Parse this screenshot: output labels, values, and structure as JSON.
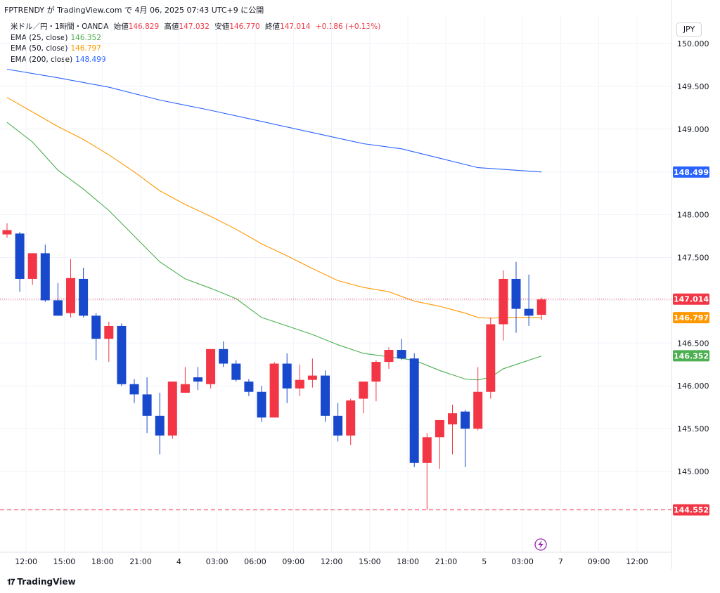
{
  "header": {
    "title": "FPTRENDY が TradingView.com で 4月 06, 2025 07:43 UTC+9 に公開"
  },
  "legend": {
    "symbol": "米ドル／円・1時間・OANDA",
    "open_label": "始値",
    "open": "146.829",
    "high_label": "高値",
    "high": "147.032",
    "low_label": "安値",
    "low": "146.770",
    "close_label": "終値",
    "close": "147.014",
    "change": "+0.186 (+0.13%)",
    "ema25_label": "EMA (25, close)",
    "ema25": "146.352",
    "ema50_label": "EMA (50, close)",
    "ema50": "146.797",
    "ema200_label": "EMA (200, close)",
    "ema200": "148.499"
  },
  "currency": "JPY",
  "footer": {
    "brand": "TradingView"
  },
  "colors": {
    "up": "#f23645",
    "down": "#1848cc",
    "ema25": "#4caf50",
    "ema50": "#ff9800",
    "ema200": "#2962ff",
    "grid": "#f0f3fa"
  },
  "chart_data": {
    "type": "candlestick",
    "title": "米ドル／円・1時間・OANDA",
    "y_ticks": [
      "150.000",
      "149.500",
      "149.000",
      "148.500",
      "148.000",
      "147.500",
      "147.000",
      "146.500",
      "146.000",
      "145.500",
      "145.000"
    ],
    "ylim": [
      144.3,
      150.25
    ],
    "x_ticks": [
      {
        "i": 1.5,
        "label": "12:00"
      },
      {
        "i": 4.5,
        "label": "15:00"
      },
      {
        "i": 7.5,
        "label": "18:00"
      },
      {
        "i": 10.5,
        "label": "21:00"
      },
      {
        "i": 13.5,
        "label": "4"
      },
      {
        "i": 16.5,
        "label": "03:00"
      },
      {
        "i": 19.5,
        "label": "06:00"
      },
      {
        "i": 22.5,
        "label": "09:00"
      },
      {
        "i": 25.5,
        "label": "12:00"
      },
      {
        "i": 28.5,
        "label": "15:00"
      },
      {
        "i": 31.5,
        "label": "18:00"
      },
      {
        "i": 34.5,
        "label": "21:00"
      },
      {
        "i": 37.5,
        "label": "5"
      },
      {
        "i": 40.5,
        "label": "03:00"
      },
      {
        "i": 43.5,
        "label": "7"
      },
      {
        "i": 46.5,
        "label": "09:00"
      },
      {
        "i": 49.5,
        "label": "12:00"
      }
    ],
    "candles": [
      [
        147.77,
        147.9,
        147.73,
        147.82
      ],
      [
        147.78,
        147.8,
        147.1,
        147.25
      ],
      [
        147.25,
        147.55,
        147.18,
        147.55
      ],
      [
        147.55,
        147.65,
        146.98,
        147.0
      ],
      [
        147.0,
        147.2,
        146.82,
        146.82
      ],
      [
        146.85,
        147.48,
        146.8,
        147.26
      ],
      [
        147.25,
        147.38,
        146.8,
        146.82
      ],
      [
        146.82,
        146.85,
        146.3,
        146.55
      ],
      [
        146.55,
        146.75,
        146.28,
        146.7
      ],
      [
        146.7,
        146.73,
        146.0,
        146.02
      ],
      [
        146.02,
        146.08,
        145.8,
        145.9
      ],
      [
        145.9,
        146.1,
        145.45,
        145.65
      ],
      [
        145.65,
        145.92,
        145.2,
        145.42
      ],
      [
        145.42,
        146.05,
        145.38,
        146.05
      ],
      [
        145.92,
        146.22,
        145.92,
        146.02
      ],
      [
        146.1,
        146.22,
        145.95,
        146.05
      ],
      [
        146.02,
        146.43,
        145.97,
        146.43
      ],
      [
        146.43,
        146.52,
        146.22,
        146.26
      ],
      [
        146.26,
        146.3,
        146.05,
        146.07
      ],
      [
        146.05,
        146.08,
        145.88,
        145.93
      ],
      [
        145.93,
        146.0,
        145.58,
        145.63
      ],
      [
        145.63,
        146.28,
        145.63,
        146.26
      ],
      [
        146.26,
        146.38,
        145.8,
        145.97
      ],
      [
        145.97,
        146.25,
        145.88,
        146.07
      ],
      [
        146.07,
        146.32,
        145.98,
        146.12
      ],
      [
        146.12,
        146.18,
        145.58,
        145.65
      ],
      [
        145.65,
        145.8,
        145.35,
        145.42
      ],
      [
        145.42,
        145.85,
        145.31,
        145.83
      ],
      [
        145.85,
        146.05,
        145.68,
        146.05
      ],
      [
        146.05,
        146.3,
        145.82,
        146.28
      ],
      [
        146.28,
        146.45,
        146.2,
        146.42
      ],
      [
        146.42,
        146.55,
        146.3,
        146.32
      ],
      [
        146.32,
        146.38,
        145.05,
        145.1
      ],
      [
        145.1,
        145.45,
        144.55,
        145.4
      ],
      [
        145.4,
        145.6,
        145.03,
        145.6
      ],
      [
        145.55,
        145.78,
        145.2,
        145.68
      ],
      [
        145.7,
        145.72,
        145.05,
        145.5
      ],
      [
        145.5,
        146.22,
        145.48,
        145.93
      ],
      [
        145.93,
        146.8,
        145.85,
        146.72
      ],
      [
        146.72,
        147.35,
        146.53,
        147.25
      ],
      [
        147.25,
        147.45,
        146.62,
        146.9
      ],
      [
        146.9,
        147.3,
        146.7,
        146.82
      ],
      [
        146.83,
        147.03,
        146.77,
        147.01
      ]
    ],
    "ema25": [
      [
        0,
        149.08
      ],
      [
        2,
        148.85
      ],
      [
        4,
        148.52
      ],
      [
        6,
        148.3
      ],
      [
        8,
        148.05
      ],
      [
        10,
        147.75
      ],
      [
        12,
        147.45
      ],
      [
        14,
        147.25
      ],
      [
        16,
        147.14
      ],
      [
        18,
        147.02
      ],
      [
        20,
        146.8
      ],
      [
        22,
        146.7
      ],
      [
        24,
        146.6
      ],
      [
        26,
        146.48
      ],
      [
        28,
        146.38
      ],
      [
        30,
        146.34
      ],
      [
        32,
        146.3
      ],
      [
        34,
        146.18
      ],
      [
        36,
        146.08
      ],
      [
        37,
        146.07
      ],
      [
        38,
        146.1
      ],
      [
        39,
        146.2
      ],
      [
        40,
        146.25
      ],
      [
        41,
        146.3
      ],
      [
        42,
        146.35
      ]
    ],
    "ema50": [
      [
        0,
        149.37
      ],
      [
        2,
        149.2
      ],
      [
        4,
        149.03
      ],
      [
        6,
        148.88
      ],
      [
        8,
        148.7
      ],
      [
        10,
        148.5
      ],
      [
        12,
        148.28
      ],
      [
        14,
        148.12
      ],
      [
        16,
        147.98
      ],
      [
        18,
        147.83
      ],
      [
        20,
        147.66
      ],
      [
        22,
        147.52
      ],
      [
        24,
        147.37
      ],
      [
        26,
        147.23
      ],
      [
        28,
        147.15
      ],
      [
        30,
        147.1
      ],
      [
        32,
        146.99
      ],
      [
        34,
        146.93
      ],
      [
        36,
        146.85
      ],
      [
        37,
        146.8
      ],
      [
        38,
        146.79
      ],
      [
        39,
        146.8
      ],
      [
        40,
        146.8
      ],
      [
        41,
        146.8
      ],
      [
        42,
        146.797
      ]
    ],
    "ema200": [
      [
        0,
        149.7
      ],
      [
        4,
        149.6
      ],
      [
        8,
        149.49
      ],
      [
        12,
        149.34
      ],
      [
        16,
        149.22
      ],
      [
        20,
        149.09
      ],
      [
        24,
        148.96
      ],
      [
        28,
        148.83
      ],
      [
        31,
        148.77
      ],
      [
        34,
        148.66
      ],
      [
        37,
        148.55
      ],
      [
        40,
        148.52
      ],
      [
        42,
        148.499
      ]
    ],
    "price_labels": [
      {
        "value": 148.499,
        "label": "148.499",
        "color": "#2962ff"
      },
      {
        "value": 147.014,
        "label": "147.014",
        "color": "#f23645"
      },
      {
        "value": 146.797,
        "label": "146.797",
        "color": "#ff9800"
      },
      {
        "value": 146.352,
        "label": "146.352",
        "color": "#4caf50"
      },
      {
        "value": 144.552,
        "label": "144.552",
        "color": "#f23645"
      }
    ],
    "current_price": 147.014,
    "alert_level": 144.552
  }
}
